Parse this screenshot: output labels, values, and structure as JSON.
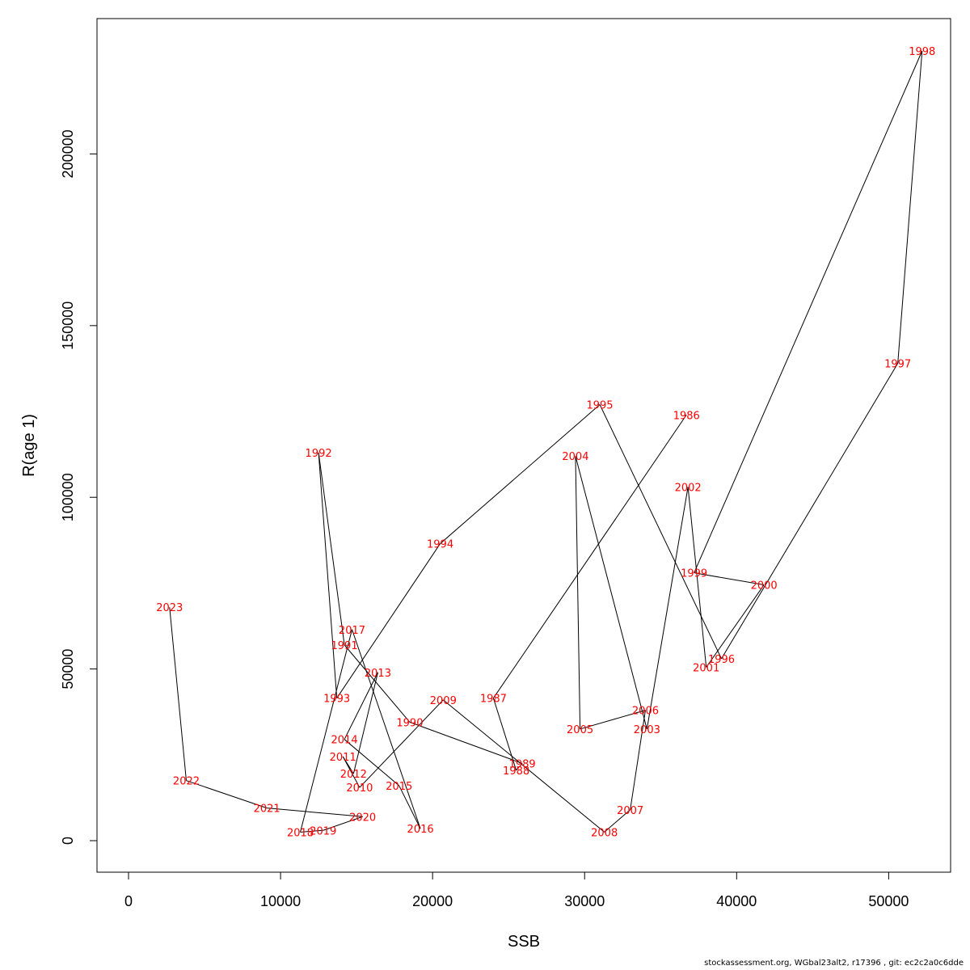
{
  "chart_data": {
    "type": "line",
    "xlabel": "SSB",
    "ylabel": "R(age 1)",
    "xlim": [
      0,
      52000
    ],
    "ylim": [
      0,
      230000
    ],
    "x_ticks": [
      0,
      10000,
      20000,
      30000,
      40000,
      50000
    ],
    "x_tick_labels": [
      "0",
      "10000",
      "20000",
      "30000",
      "40000",
      "50000"
    ],
    "y_ticks": [
      0,
      50000,
      100000,
      150000,
      200000
    ],
    "y_tick_labels": [
      "0",
      "50000",
      "100000",
      "150000",
      "200000"
    ],
    "grid": false,
    "line_color": "#000000",
    "label_color": "#ff0000",
    "points": [
      {
        "label": "1986",
        "x": 36700,
        "y": 124000
      },
      {
        "label": "1987",
        "x": 24000,
        "y": 41500
      },
      {
        "label": "1988",
        "x": 25500,
        "y": 20500
      },
      {
        "label": "1989",
        "x": 25900,
        "y": 22500
      },
      {
        "label": "1990",
        "x": 18500,
        "y": 34500
      },
      {
        "label": "1991",
        "x": 14200,
        "y": 57000
      },
      {
        "label": "1992",
        "x": 12500,
        "y": 113000
      },
      {
        "label": "1993",
        "x": 13700,
        "y": 41500
      },
      {
        "label": "1994",
        "x": 20500,
        "y": 86500
      },
      {
        "label": "1995",
        "x": 31000,
        "y": 127000
      },
      {
        "label": "1996",
        "x": 39000,
        "y": 53000
      },
      {
        "label": "1997",
        "x": 50600,
        "y": 139000
      },
      {
        "label": "1998",
        "x": 52200,
        "y": 230000
      },
      {
        "label": "1999",
        "x": 37200,
        "y": 78000
      },
      {
        "label": "2000",
        "x": 41800,
        "y": 74500
      },
      {
        "label": "2001",
        "x": 38000,
        "y": 50500
      },
      {
        "label": "2002",
        "x": 36800,
        "y": 103000
      },
      {
        "label": "2003",
        "x": 34100,
        "y": 32500
      },
      {
        "label": "2004",
        "x": 29400,
        "y": 112000
      },
      {
        "label": "2005",
        "x": 29700,
        "y": 32500
      },
      {
        "label": "2006",
        "x": 34000,
        "y": 38000
      },
      {
        "label": "2007",
        "x": 33000,
        "y": 9000
      },
      {
        "label": "2008",
        "x": 31300,
        "y": 2500
      },
      {
        "label": "2009",
        "x": 20700,
        "y": 41000
      },
      {
        "label": "2010",
        "x": 15200,
        "y": 15500
      },
      {
        "label": "2011",
        "x": 14100,
        "y": 24500
      },
      {
        "label": "2012",
        "x": 14800,
        "y": 19500
      },
      {
        "label": "2013",
        "x": 16400,
        "y": 49000
      },
      {
        "label": "2014",
        "x": 14200,
        "y": 29500
      },
      {
        "label": "2015",
        "x": 17800,
        "y": 16000
      },
      {
        "label": "2016",
        "x": 19200,
        "y": 3500
      },
      {
        "label": "2017",
        "x": 14700,
        "y": 61500
      },
      {
        "label": "2018",
        "x": 11300,
        "y": 2500
      },
      {
        "label": "2019",
        "x": 12800,
        "y": 3000
      },
      {
        "label": "2020",
        "x": 15400,
        "y": 7000
      },
      {
        "label": "2021",
        "x": 9100,
        "y": 9500
      },
      {
        "label": "2022",
        "x": 3800,
        "y": 17500
      },
      {
        "label": "2023",
        "x": 2700,
        "y": 68000
      }
    ]
  },
  "footer": "stockassessment.org, WGbal23alt2, r17396 , git: ec2c2a0c6dde"
}
